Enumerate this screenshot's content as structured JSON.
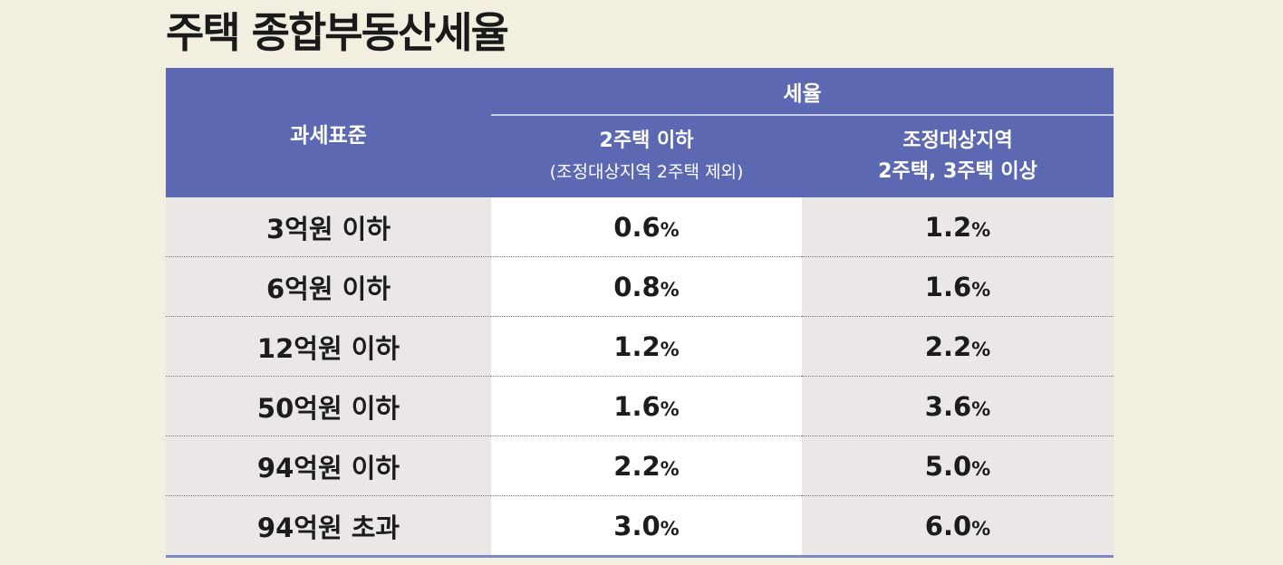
{
  "title": "주택 종합부동산세율",
  "table": {
    "header": {
      "base_label": "과세표준",
      "group_label": "세율",
      "col1_line1": "2주택 이하",
      "col1_line2": "(조정대상지역 2주택 제외)",
      "col2_line1": "조정대상지역",
      "col2_line2": "2주택, 3주택 이상"
    },
    "rows": [
      {
        "base": "3억원 이하",
        "rate1": "0.6",
        "rate2": "1.2"
      },
      {
        "base": "6억원 이하",
        "rate1": "0.8",
        "rate2": "1.6"
      },
      {
        "base": "12억원 이하",
        "rate1": "1.2",
        "rate2": "2.2"
      },
      {
        "base": "50억원 이하",
        "rate1": "1.6",
        "rate2": "3.6"
      },
      {
        "base": "94억원 이하",
        "rate1": "2.2",
        "rate2": "5.0"
      },
      {
        "base": "94억원 초과",
        "rate1": "3.0",
        "rate2": "6.0"
      }
    ],
    "unit": "%"
  },
  "colors": {
    "background": "#f2efe1",
    "header": "#5c68b2",
    "base_cell": "#ebe7e6",
    "rate1_cell": "#ffffff",
    "rate2_cell": "#ebe7e6"
  }
}
